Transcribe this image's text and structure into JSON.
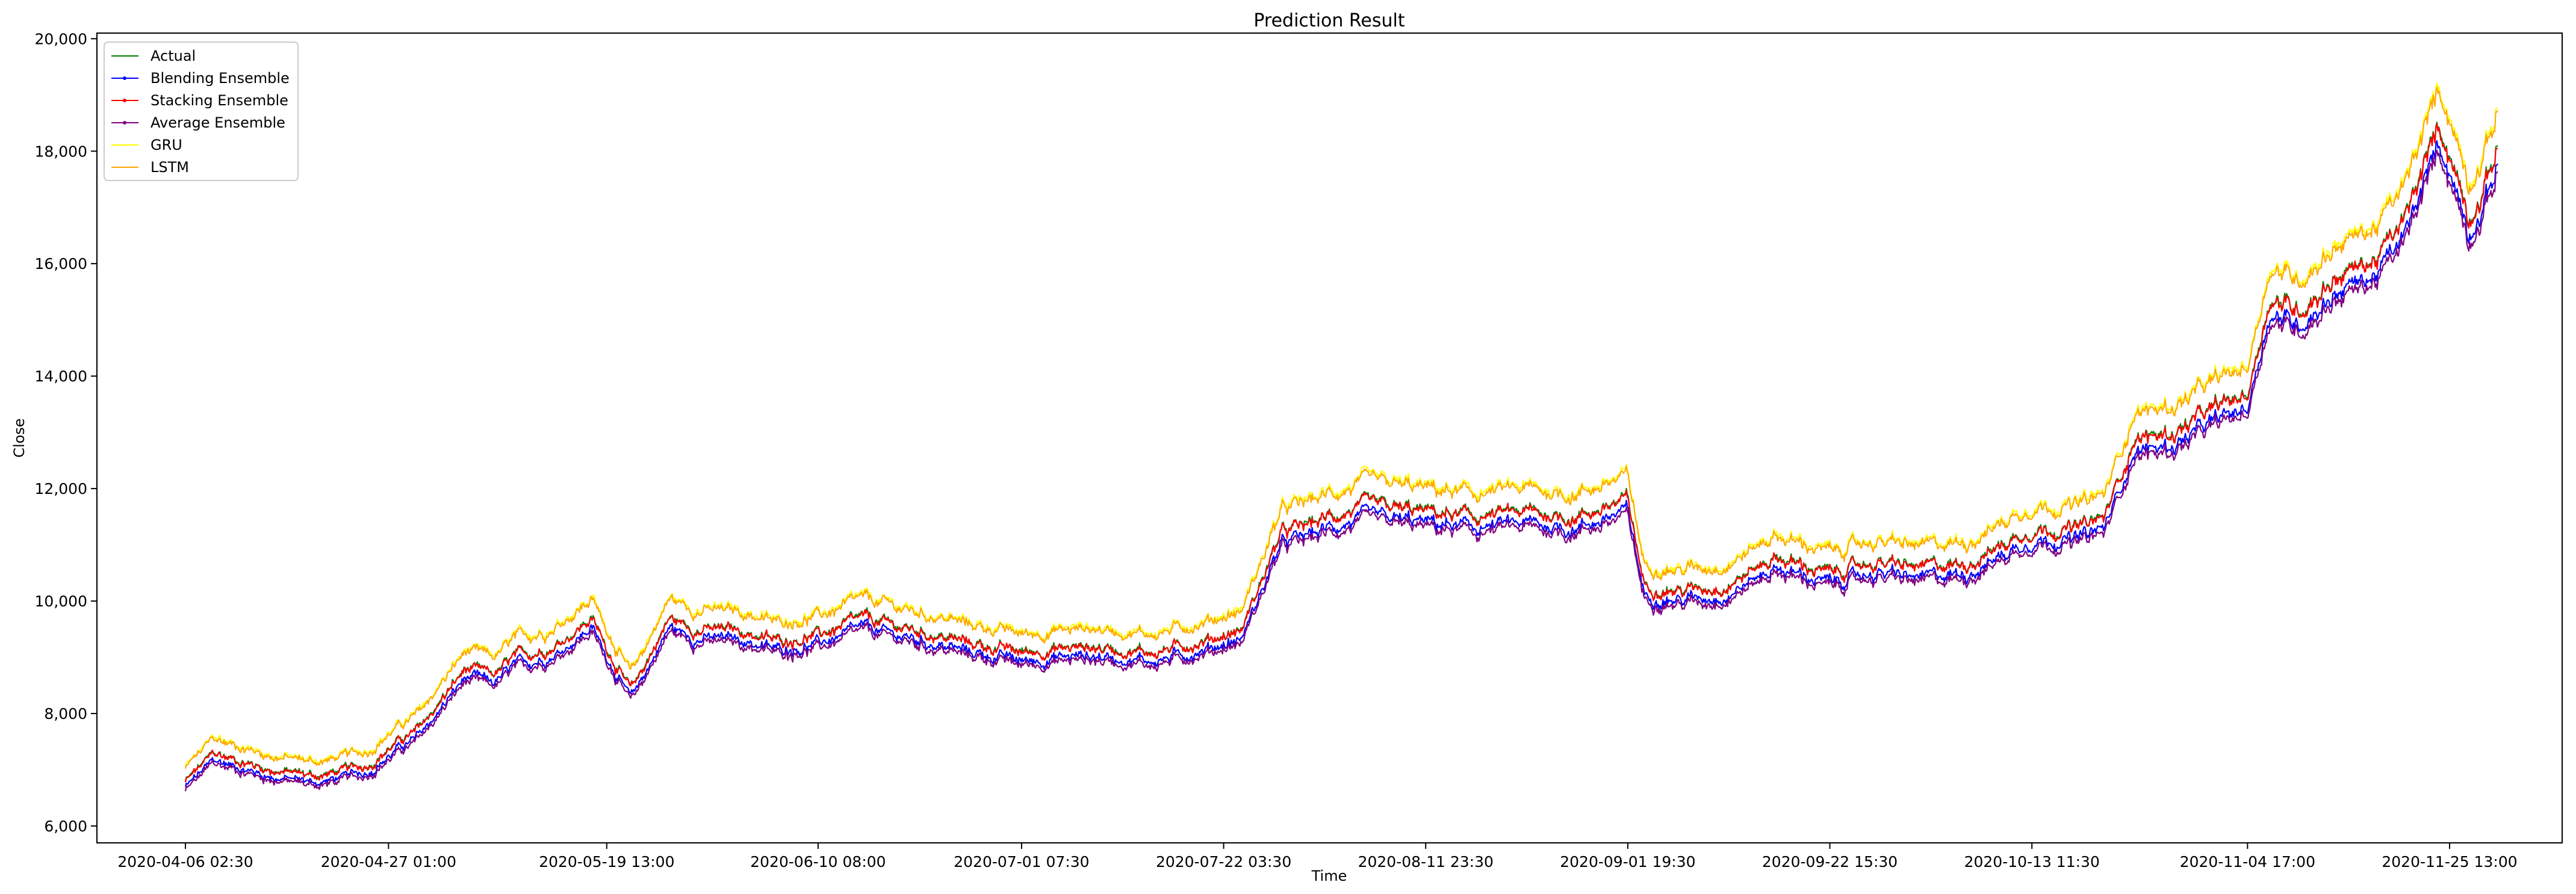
{
  "chart_data": {
    "type": "line",
    "title": "Prediction Result",
    "xlabel": "Time",
    "ylabel": "Close",
    "ylim": [
      5700,
      20100
    ],
    "yticks": [
      6000,
      8000,
      10000,
      12000,
      14000,
      16000,
      18000,
      20000
    ],
    "ytick_labels": [
      "6,000",
      "8,000",
      "10,000",
      "12,000",
      "14,000",
      "16,000",
      "18,000",
      "20,000"
    ],
    "x_start": "2020-04-06 02:30",
    "x_end": "2020-12-01 00:00",
    "xticks": [
      "2020-04-06 02:30",
      "2020-04-27 01:00",
      "2020-05-19 13:00",
      "2020-06-10 08:00",
      "2020-07-01 07:30",
      "2020-07-22 03:30",
      "2020-08-11 23:30",
      "2020-09-01 19:30",
      "2020-09-22 15:30",
      "2020-10-13 11:30",
      "2020-11-04 17:00",
      "2020-11-25 13:00"
    ],
    "grid": false,
    "legend_position": "upper left",
    "actual": {
      "x": [
        "2020-04-06 02:30",
        "2020-04-09 00:00",
        "2020-04-15 00:00",
        "2020-04-20 00:00",
        "2020-04-25 00:00",
        "2020-04-28 00:00",
        "2020-04-30 00:00",
        "2020-05-05 00:00",
        "2020-05-08 00:00",
        "2020-05-10 00:00",
        "2020-05-14 00:00",
        "2020-05-18 00:00",
        "2020-05-22 00:00",
        "2020-05-26 00:00",
        "2020-05-29 00:00",
        "2020-06-02 00:00",
        "2020-06-06 00:00",
        "2020-06-10 08:00",
        "2020-06-15 00:00",
        "2020-06-20 00:00",
        "2020-06-25 00:00",
        "2020-07-01 07:30",
        "2020-07-08 00:00",
        "2020-07-15 00:00",
        "2020-07-20 00:00",
        "2020-07-24 00:00",
        "2020-07-28 00:00",
        "2020-08-02 00:00",
        "2020-08-06 00:00",
        "2020-08-11 23:30",
        "2020-08-17 00:00",
        "2020-08-22 00:00",
        "2020-08-27 00:00",
        "2020-09-01 19:30",
        "2020-09-03 12:00",
        "2020-09-07 00:00",
        "2020-09-12 00:00",
        "2020-09-17 00:00",
        "2020-09-22 15:30",
        "2020-09-27 00:00",
        "2020-10-02 00:00",
        "2020-10-07 00:00",
        "2020-10-13 11:30",
        "2020-10-18 00:00",
        "2020-10-21 00:00",
        "2020-10-24 00:00",
        "2020-10-28 00:00",
        "2020-11-01 00:00",
        "2020-11-04 17:00",
        "2020-11-07 00:00",
        "2020-11-10 00:00",
        "2020-11-14 00:00",
        "2020-11-18 00:00",
        "2020-11-21 00:00",
        "2020-11-24 12:00",
        "2020-11-26 12:00",
        "2020-11-27 12:00",
        "2020-11-29 00:00",
        "2020-11-30 12:00"
      ],
      "y": [
        6800,
        7300,
        7000,
        6900,
        7100,
        7500,
        7700,
        8800,
        8700,
        9000,
        9200,
        9700,
        8400,
        9700,
        9500,
        9500,
        9300,
        9400,
        9700,
        9500,
        9300,
        9100,
        9200,
        9100,
        9300,
        9500,
        11200,
        11500,
        11700,
        11600,
        11500,
        11600,
        11500,
        11800,
        10300,
        10200,
        10300,
        10800,
        10500,
        10700,
        10600,
        10700,
        11300,
        11300,
        11500,
        12900,
        13000,
        13400,
        13700,
        15400,
        15200,
        15800,
        16100,
        16800,
        18500,
        17500,
        16900,
        17300,
        18100
      ]
    },
    "series": [
      {
        "name": "Actual",
        "color": "#008000",
        "marker": "none",
        "offset": 0
      },
      {
        "name": "Blending Ensemble",
        "color": "#0000ff",
        "marker": "dot",
        "offset": -180
      },
      {
        "name": "Stacking Ensemble",
        "color": "#ff0000",
        "marker": "dot",
        "offset": -20
      },
      {
        "name": "Average Ensemble",
        "color": "#800080",
        "marker": "dot",
        "offset": -260
      },
      {
        "name": "GRU",
        "color": "#ffff00",
        "marker": "none",
        "offset": 380
      },
      {
        "name": "LSTM",
        "color": "#ffa500",
        "marker": "none",
        "offset": 340
      }
    ]
  }
}
